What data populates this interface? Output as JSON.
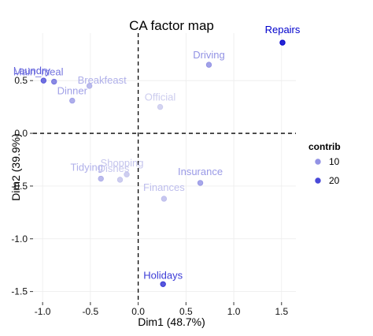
{
  "chart_data": {
    "type": "scatter",
    "title": "CA factor map",
    "xlabel": "Dim1 (48.7%)",
    "ylabel": "Dim2 (39.9%)",
    "xlim": [
      -1.1,
      1.65
    ],
    "ylim": [
      -1.6,
      0.95
    ],
    "x_ticks": [
      -1.0,
      -0.5,
      0.0,
      0.5,
      1.0,
      1.5
    ],
    "y_ticks": [
      -1.5,
      -1.0,
      -0.5,
      0.0,
      0.5
    ],
    "x_tick_labels": [
      "-1.0",
      "-0.5",
      "0.0",
      "0.5",
      "1.0",
      "1.5"
    ],
    "y_tick_labels": [
      "-1.5",
      "-1.0",
      "-0.5",
      "0.0",
      "0.5"
    ],
    "grid": true,
    "reference_lines": {
      "x": 0,
      "y": 0,
      "style": "dashed"
    },
    "low_color": "#ccccee",
    "high_color": "#0000cc",
    "contrib_range": [
      2,
      30
    ],
    "points": [
      {
        "label": "Laundry",
        "x": -0.99,
        "y": 0.5,
        "contrib": 18
      },
      {
        "label": "Main_meal",
        "x": -0.88,
        "y": 0.49,
        "contrib": 14
      },
      {
        "label": "Dinner",
        "x": -0.69,
        "y": 0.31,
        "contrib": 8
      },
      {
        "label": "Breakfeast",
        "x": -0.51,
        "y": 0.45,
        "contrib": 6
      },
      {
        "label": "Tidying",
        "x": -0.39,
        "y": -0.43,
        "contrib": 6
      },
      {
        "label": "Dishes",
        "x": -0.19,
        "y": -0.44,
        "contrib": 3
      },
      {
        "label": "Shopping",
        "x": -0.12,
        "y": -0.39,
        "contrib": 3
      },
      {
        "label": "Official",
        "x": 0.23,
        "y": 0.25,
        "contrib": 2
      },
      {
        "label": "Finances",
        "x": 0.27,
        "y": -0.62,
        "contrib": 4
      },
      {
        "label": "Driving",
        "x": 0.74,
        "y": 0.65,
        "contrib": 10
      },
      {
        "label": "Insurance",
        "x": 0.65,
        "y": -0.47,
        "contrib": 9
      },
      {
        "label": "Repairs",
        "x": 1.51,
        "y": 0.86,
        "contrib": 30
      },
      {
        "label": "Holidays",
        "x": 0.26,
        "y": -1.43,
        "contrib": 22
      }
    ],
    "legend": {
      "title": "contrib",
      "position": "right",
      "items": [
        {
          "label": "10",
          "contrib": 10
        },
        {
          "label": "20",
          "contrib": 20
        }
      ]
    }
  }
}
